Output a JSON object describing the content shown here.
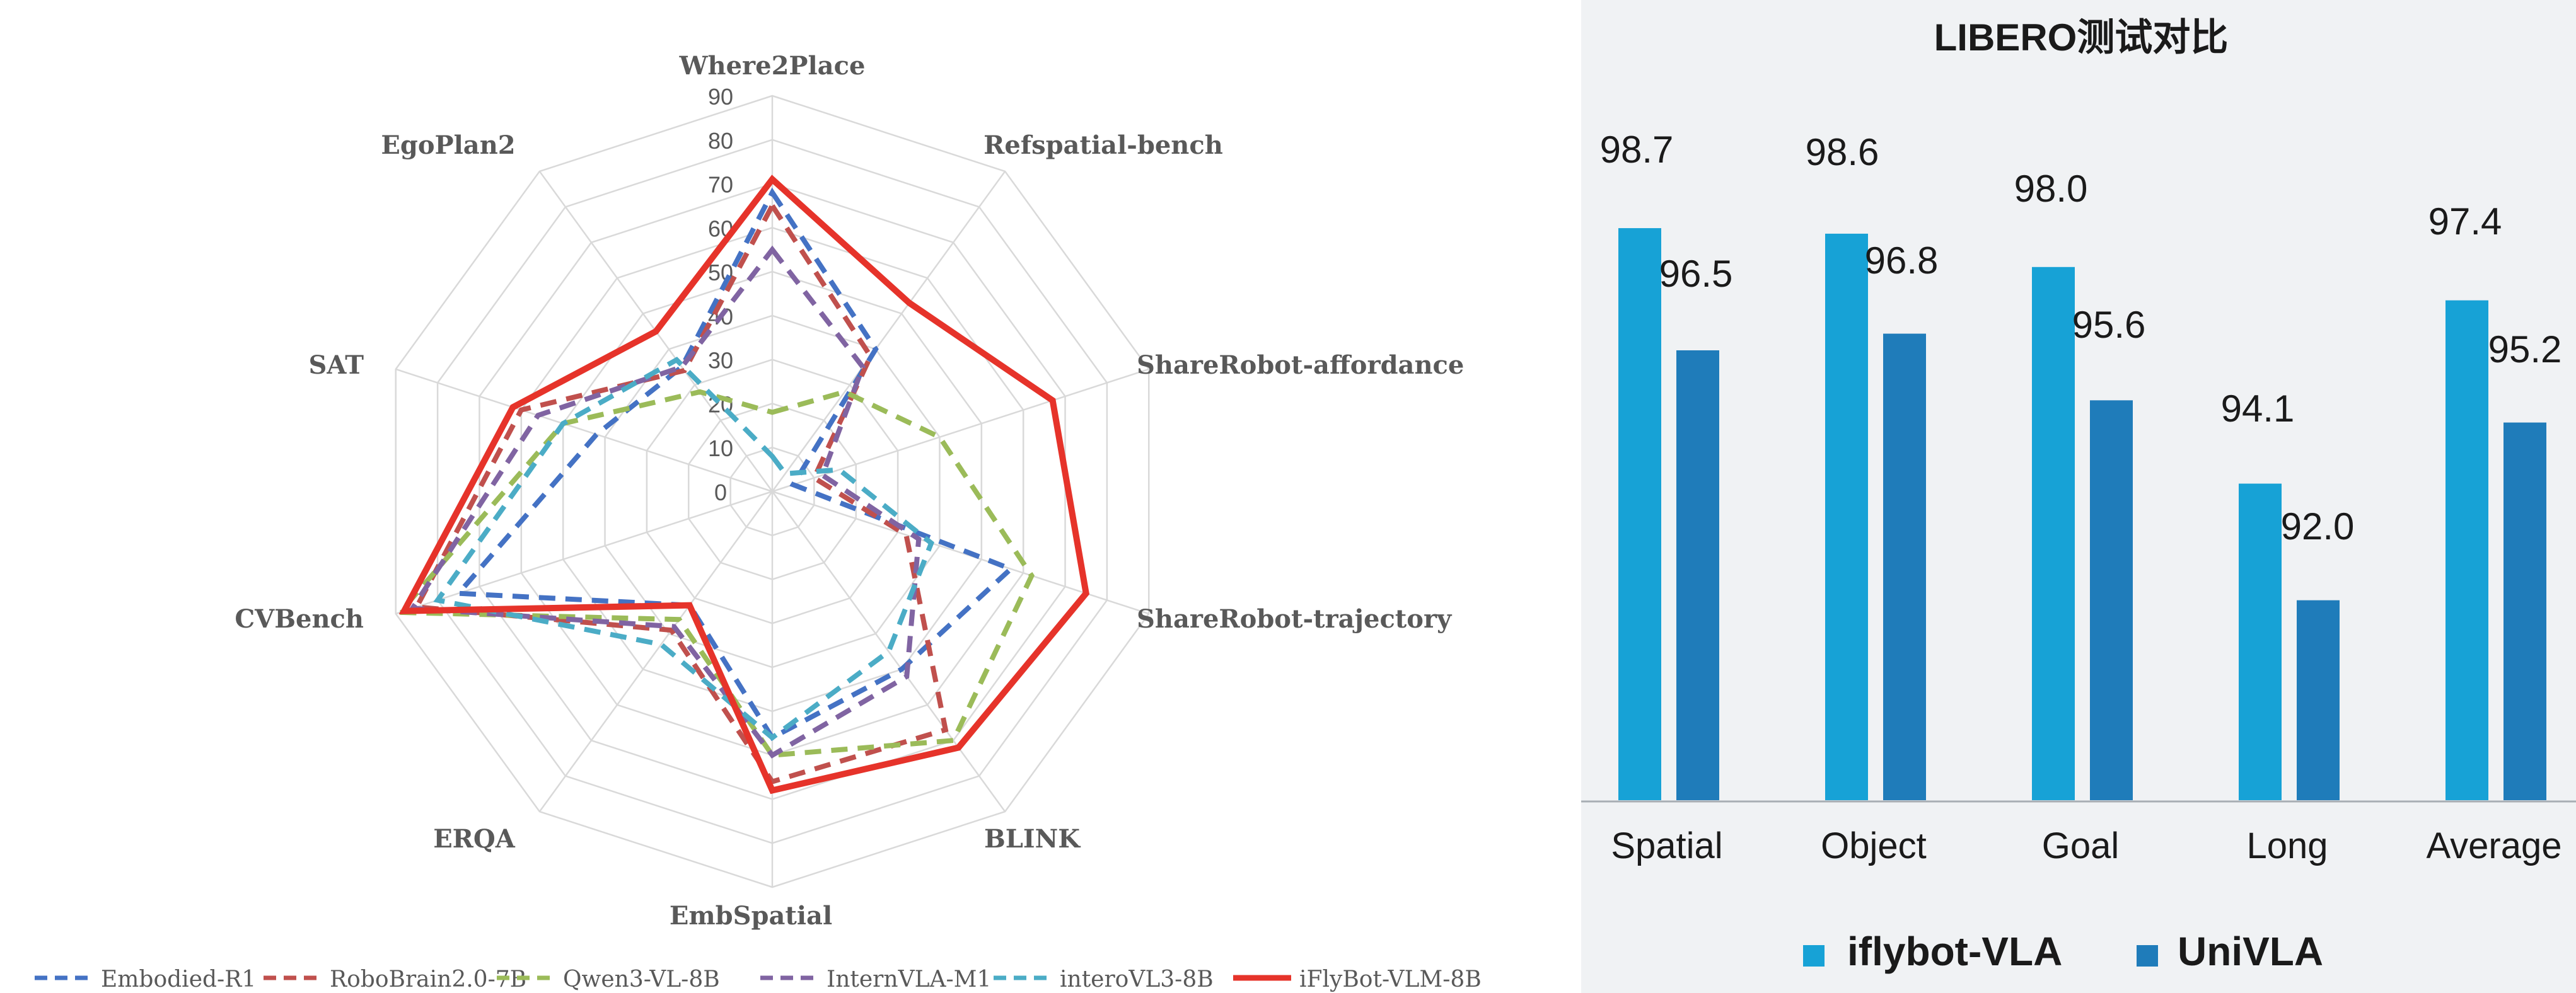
{
  "chart_data": [
    {
      "type": "radar",
      "title": "",
      "axes": [
        "Where2Place",
        "Refspatial-bench",
        "ShareRobot-affordance",
        "ShareRobot-trajectory",
        "BLINK",
        "EmbSpatial",
        "ERQA",
        "CVBench",
        "SAT",
        "EgoPlan2"
      ],
      "ticks": [
        0,
        10,
        20,
        30,
        40,
        50,
        60,
        70,
        80,
        90
      ],
      "range": [
        0,
        90
      ],
      "legend_position": "bottom",
      "series": [
        {
          "name": "Embodied-R1",
          "color": "#4472c4",
          "dash": "dashed",
          "values": [
            68,
            40,
            5,
            57,
            50,
            56,
            32,
            75,
            42,
            35
          ]
        },
        {
          "name": "RoboBrain2.0-7B",
          "color": "#c0504d",
          "dash": "dashed",
          "values": [
            65,
            38,
            10,
            32,
            67,
            66,
            39,
            85,
            60,
            34
          ]
        },
        {
          "name": "Qwen3-VL-8B",
          "color": "#9bbb59",
          "dash": "dashed",
          "values": [
            18,
            28,
            40,
            62,
            70,
            60,
            36,
            89,
            50,
            28
          ]
        },
        {
          "name": "InternVLA-M1",
          "color": "#8064a2",
          "dash": "dashed",
          "values": [
            55,
            35,
            12,
            35,
            52,
            60,
            38,
            86,
            56,
            35
          ]
        },
        {
          "name": "interoVL3-8B",
          "color": "#4bacc6",
          "dash": "dashed",
          "values": [
            8,
            5,
            16,
            38,
            45,
            56,
            43,
            80,
            50,
            37
          ]
        },
        {
          "name": "iFlyBot-VLM-8B",
          "color": "#e6332a",
          "dash": "solid",
          "values": [
            71,
            53,
            67,
            75,
            72,
            68,
            32,
            88,
            62,
            45
          ]
        }
      ]
    },
    {
      "type": "bar",
      "title": "LIBERO测试对比",
      "categories": [
        "Spatial",
        "Object",
        "Goal",
        "Long",
        "Average"
      ],
      "series": [
        {
          "name": "iflybot-VLA",
          "color": "#17a2d6",
          "values": [
            98.7,
            98.6,
            98.0,
            94.1,
            97.4
          ],
          "labels": [
            "98.7",
            "98.6",
            "98.0",
            "94.1",
            "97.4"
          ]
        },
        {
          "name": "UniVLA",
          "color": "#1f7cba",
          "values": [
            96.5,
            96.8,
            95.6,
            92.0,
            95.2
          ],
          "labels": [
            "96.5",
            "96.8",
            "95.6",
            "92.0",
            "95.2"
          ]
        }
      ],
      "ylim": [
        88.4,
        99.2
      ],
      "legend_position": "bottom",
      "xlabel": "",
      "ylabel": ""
    }
  ]
}
